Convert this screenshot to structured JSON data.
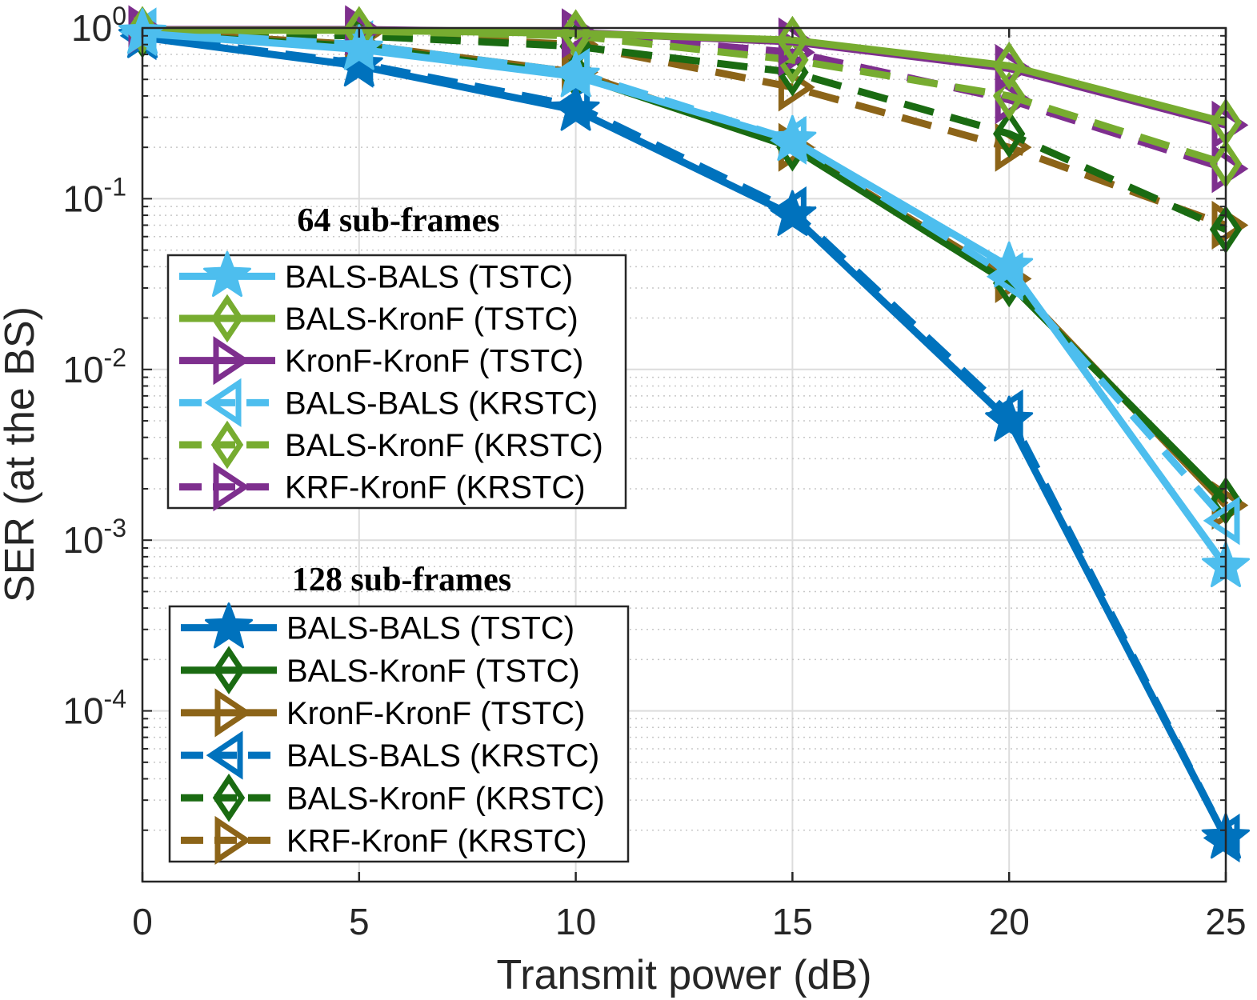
{
  "chart_data": {
    "type": "line",
    "xlabel": "Transmit power (dB)",
    "ylabel": "SER (at the BS)",
    "yscale": "log",
    "xlim": [
      0,
      25
    ],
    "ylim": [
      1e-05,
      1
    ],
    "xticks": [
      0,
      5,
      10,
      15,
      20,
      25
    ],
    "xtick_labels": [
      "0",
      "5",
      "10",
      "15",
      "20",
      "25"
    ],
    "yticks": [
      {
        "value": 1,
        "base": "10",
        "exp": "0"
      },
      {
        "value": 0.1,
        "base": "10",
        "exp": "-1"
      },
      {
        "value": 0.01,
        "base": "10",
        "exp": "-2"
      },
      {
        "value": 0.001,
        "base": "10",
        "exp": "-3"
      },
      {
        "value": 0.0001,
        "base": "10",
        "exp": "-4"
      }
    ],
    "grid": true,
    "minor_grid": true,
    "x": [
      0,
      5,
      10,
      15,
      20,
      25
    ],
    "legend_groups": [
      {
        "title": "64 sub-frames",
        "placement": "upper-left",
        "series_indices": [
          0,
          1,
          2,
          3,
          4,
          5
        ]
      },
      {
        "title": "128 sub-frames",
        "placement": "lower-left",
        "series_indices": [
          6,
          7,
          8,
          9,
          10,
          11
        ]
      }
    ],
    "series": [
      {
        "name": "BALS-BALS (TSTC)",
        "color": "#4DBEEE",
        "dash": "solid",
        "marker": "star",
        "values": [
          0.93,
          0.75,
          0.52,
          0.22,
          0.04,
          0.0007
        ]
      },
      {
        "name": "BALS-KronF (TSTC)",
        "color": "#77AC30",
        "dash": "solid",
        "marker": "diamond",
        "values": [
          0.97,
          0.97,
          0.93,
          0.85,
          0.6,
          0.28
        ]
      },
      {
        "name": "KronF-KronF (TSTC)",
        "color": "#7E2F8E",
        "dash": "solid",
        "marker": "triangle-right",
        "values": [
          0.98,
          0.98,
          0.94,
          0.83,
          0.58,
          0.27
        ]
      },
      {
        "name": "BALS-BALS (KRSTC)",
        "color": "#4DBEEE",
        "dash": "dashed",
        "marker": "triangle-left",
        "values": [
          0.95,
          0.8,
          0.55,
          0.22,
          0.035,
          0.0013
        ]
      },
      {
        "name": "BALS-KronF (KRSTC)",
        "color": "#77AC30",
        "dash": "dashed",
        "marker": "diamond",
        "values": [
          0.96,
          0.96,
          0.9,
          0.65,
          0.4,
          0.16
        ]
      },
      {
        "name": "KRF-KronF (KRSTC)",
        "color": "#7E2F8E",
        "dash": "dashed",
        "marker": "triangle-right",
        "values": [
          0.97,
          0.96,
          0.92,
          0.72,
          0.38,
          0.15
        ]
      },
      {
        "name": "BALS-BALS (TSTC)",
        "color": "#0072BD",
        "dash": "solid",
        "marker": "star",
        "values": [
          0.88,
          0.6,
          0.33,
          0.08,
          0.005,
          1.8e-05
        ]
      },
      {
        "name": "BALS-KronF (TSTC)",
        "color": "#1A6B12",
        "dash": "solid",
        "marker": "diamond",
        "values": [
          0.92,
          0.78,
          0.53,
          0.2,
          0.032,
          0.0017
        ]
      },
      {
        "name": "KronF-KronF (TSTC)",
        "color": "#8C6418",
        "dash": "solid",
        "marker": "triangle-right",
        "values": [
          0.95,
          0.8,
          0.55,
          0.2,
          0.034,
          0.0016
        ]
      },
      {
        "name": "BALS-BALS (KRSTC)",
        "color": "#0072BD",
        "dash": "dashed",
        "marker": "triangle-left",
        "values": [
          0.9,
          0.62,
          0.35,
          0.085,
          0.0055,
          1.8e-05
        ]
      },
      {
        "name": "BALS-KronF (KRSTC)",
        "color": "#1A6B12",
        "dash": "dashed",
        "marker": "diamond",
        "values": [
          0.94,
          0.9,
          0.78,
          0.55,
          0.24,
          0.066
        ]
      },
      {
        "name": "KRF-KronF (KRSTC)",
        "color": "#8C6418",
        "dash": "dashed",
        "marker": "triangle-right",
        "values": [
          0.96,
          0.92,
          0.8,
          0.45,
          0.2,
          0.07
        ]
      }
    ]
  }
}
